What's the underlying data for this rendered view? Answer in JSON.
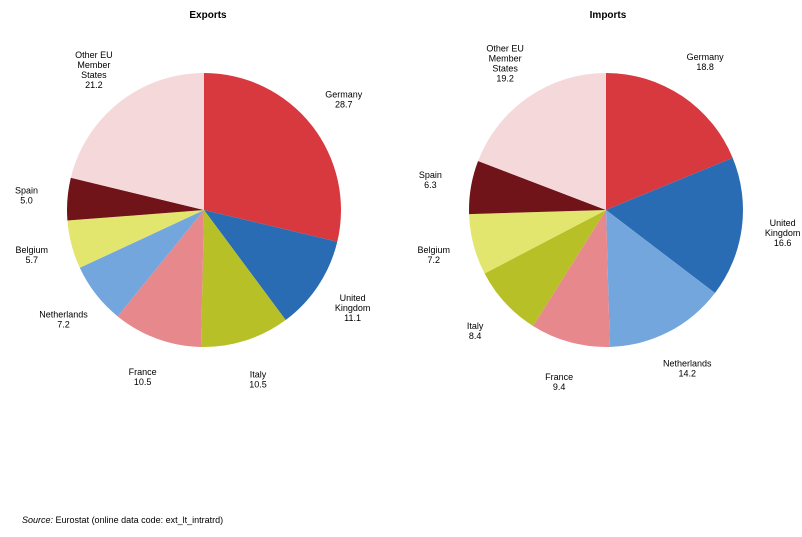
{
  "colors": {
    "Germany": "#d7393f",
    "United Kingdom": "#2a6cb4",
    "Netherlands": "#74a6de",
    "Italy": "#b8c027",
    "France": "#e7888c",
    "Belgium": "#e3e66e",
    "Spain": "#711419",
    "Other EU Member States": "#f5d9da"
  },
  "chart_data": [
    {
      "type": "pie",
      "title": "Exports",
      "slices": [
        {
          "name": "Germany",
          "label": [
            "Germany"
          ],
          "value": 28.7,
          "value_text": "28.7"
        },
        {
          "name": "United Kingdom",
          "label": [
            "United",
            "Kingdom"
          ],
          "value": 11.1,
          "value_text": "11.1"
        },
        {
          "name": "Italy",
          "label": [
            "Italy"
          ],
          "value": 10.5,
          "value_text": "10.5"
        },
        {
          "name": "France",
          "label": [
            "France"
          ],
          "value": 10.5,
          "value_text": "10.5"
        },
        {
          "name": "Netherlands",
          "label": [
            "Netherlands"
          ],
          "value": 7.2,
          "value_text": "7.2"
        },
        {
          "name": "Belgium",
          "label": [
            "Belgium"
          ],
          "value": 5.7,
          "value_text": "5.7"
        },
        {
          "name": "Spain",
          "label": [
            "Spain"
          ],
          "value": 5.0,
          "value_text": "5.0"
        },
        {
          "name": "Other EU Member States",
          "label": [
            "Other EU",
            "Member",
            "States"
          ],
          "value": 21.2,
          "value_text": "21.2"
        }
      ]
    },
    {
      "type": "pie",
      "title": "Imports",
      "slices": [
        {
          "name": "Germany",
          "label": [
            "Germany"
          ],
          "value": 18.8,
          "value_text": "18.8"
        },
        {
          "name": "United Kingdom",
          "label": [
            "United",
            "Kingdom"
          ],
          "value": 16.6,
          "value_text": "16.6"
        },
        {
          "name": "Netherlands",
          "label": [
            "Netherlands"
          ],
          "value": 14.2,
          "value_text": "14.2"
        },
        {
          "name": "France",
          "label": [
            "France"
          ],
          "value": 9.4,
          "value_text": "9.4"
        },
        {
          "name": "Italy",
          "label": [
            "Italy"
          ],
          "value": 8.4,
          "value_text": "8.4"
        },
        {
          "name": "Belgium",
          "label": [
            "Belgium"
          ],
          "value": 7.2,
          "value_text": "7.2"
        },
        {
          "name": "Spain",
          "label": [
            "Spain"
          ],
          "value": 6.3,
          "value_text": "6.3"
        },
        {
          "name": "Other EU Member States",
          "label": [
            "Other EU",
            "Member",
            "States"
          ],
          "value": 19.2,
          "value_text": "19.2"
        }
      ]
    }
  ],
  "source": {
    "label": "Source:",
    "text": "Eurostat (online data code: ext_lt_intratrd)"
  }
}
